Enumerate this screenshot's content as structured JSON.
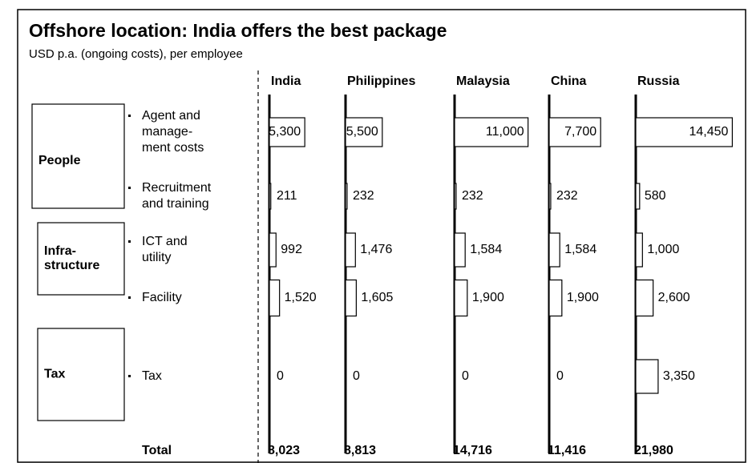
{
  "chart_data": {
    "type": "bar",
    "orientation": "horizontal",
    "title": "Offshore location: India offers the best package",
    "subtitle": "USD p.a. (ongoing costs), per employee",
    "groups": [
      [
        "People"
      ],
      [
        "Infra-",
        "structure"
      ],
      [
        "Tax"
      ]
    ],
    "categories": [
      [
        "Agent and",
        "manage-",
        "ment costs"
      ],
      [
        "Recruitment",
        "and training"
      ],
      [
        "ICT and",
        "utility"
      ],
      [
        "Facility"
      ],
      [
        "Tax"
      ]
    ],
    "xlim": [
      0,
      12000
    ],
    "series": [
      {
        "name": "India",
        "values": [
          5300,
          211,
          992,
          1520,
          0
        ],
        "value_labels": [
          "5,300",
          "211",
          "992",
          "1,520",
          "0"
        ]
      },
      {
        "name": "Philippines",
        "values": [
          5500,
          232,
          1476,
          1605,
          0
        ],
        "value_labels": [
          "5,500",
          "232",
          "1,476",
          "1,605",
          "0"
        ]
      },
      {
        "name": "Malaysia",
        "values": [
          11000,
          232,
          1584,
          1900,
          0
        ],
        "value_labels": [
          "11,000",
          "232",
          "1,584",
          "1,900",
          "0"
        ]
      },
      {
        "name": "China",
        "values": [
          7700,
          232,
          1584,
          1900,
          0
        ],
        "value_labels": [
          "7,700",
          "232",
          "1,584",
          "1,900",
          "0"
        ]
      },
      {
        "name": "Russia",
        "values": [
          14450,
          580,
          1000,
          2600,
          3350
        ],
        "value_labels": [
          "14,450",
          "580",
          "1,000",
          "2,600",
          "3,350"
        ]
      }
    ],
    "total_label": "Total",
    "totals": [
      "8,023",
      "8,813",
      "14,716",
      "11,416",
      "21,980"
    ],
    "color": "#ffffff"
  }
}
